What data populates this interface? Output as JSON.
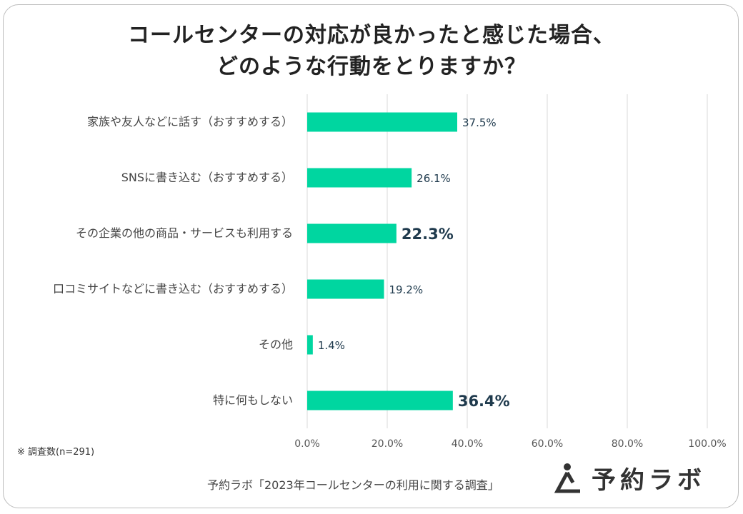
{
  "title_lines": [
    "コールセンターの対応が良かったと感じた場合、",
    "どのような行動をとりますか？"
  ],
  "chart_data": {
    "type": "bar",
    "orientation": "horizontal",
    "categories": [
      "家族や友人などに話す（おすすめする）",
      "SNSに書き込む（おすすめする）",
      "その企業の他の商品・サービスも利用する",
      "口コミサイトなどに書き込む（おすすめする）",
      "その他",
      "特に何もしない"
    ],
    "values": [
      37.5,
      26.1,
      22.3,
      19.2,
      1.4,
      36.4
    ],
    "data_labels": [
      "37.5%",
      "26.1%",
      "22.3%",
      "19.2%",
      "1.4%",
      "36.4%"
    ],
    "highlighted": [
      false,
      false,
      true,
      false,
      false,
      true
    ],
    "xlim": [
      0,
      100
    ],
    "x_ticks": [
      "0.0%",
      "20.0%",
      "40.0%",
      "60.0%",
      "80.0%",
      "100.0%"
    ],
    "bar_color": "#00d6a0",
    "label_color": "#1f3a4d"
  },
  "note": "※ 調査数(n=291)",
  "source": "予約ラボ「2023年コールセンターの利用に関する調査」",
  "brand": {
    "name": "予約ラボ",
    "logo_icon": "person-triangle-icon"
  }
}
